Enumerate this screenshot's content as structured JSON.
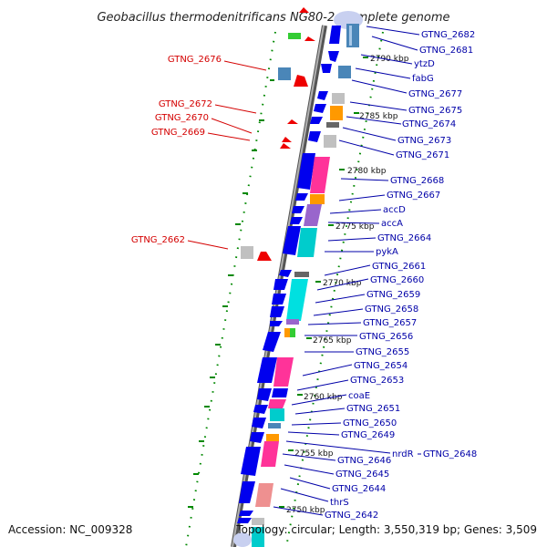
{
  "title": "Geobacillus thermodenitrificans NG80-2, complete genome",
  "footer": {
    "accession": "Accession: NC_009328",
    "topology": "Topology: circular; Length: 3,550,319 bp; Genes: 3,509"
  },
  "colors": {
    "backbone": "#888888",
    "cds_forward": "#0000ee",
    "reverse_label": "#d40000",
    "forward_label": "#0000a8",
    "gc_tick": "#008800"
  },
  "kbp_marks": [
    "2790 kbp",
    "2785 kbp",
    "2780 kbp",
    "2775 kbp",
    "2770 kbp",
    "2765 kbp",
    "2760 kbp",
    "2755 kbp",
    "2750 kbp"
  ],
  "reverse_labels": [
    "GTNG_2676",
    "GTNG_2672",
    "GTNG_2670",
    "GTNG_2669",
    "GTNG_2662"
  ],
  "forward_labels": [
    "GTNG_2682",
    "GTNG_2681",
    "ytzD",
    "fabG",
    "GTNG_2677",
    "GTNG_2675",
    "GTNG_2674",
    "GTNG_2673",
    "GTNG_2671",
    "GTNG_2668",
    "GTNG_2667",
    "accD",
    "accA",
    "GTNG_2664",
    "pykA",
    "GTNG_2661",
    "GTNG_2660",
    "GTNG_2659",
    "GTNG_2658",
    "GTNG_2657",
    "GTNG_2656",
    "GTNG_2655",
    "GTNG_2654",
    "GTNG_2653",
    "coaE",
    "GTNG_2651",
    "GTNG_2650",
    "GTNG_2649",
    "nrdR",
    "GTNG_2648",
    "GTNG_2646",
    "GTNG_2645",
    "GTNG_2644",
    "thrS",
    "GTNG_2642"
  ]
}
